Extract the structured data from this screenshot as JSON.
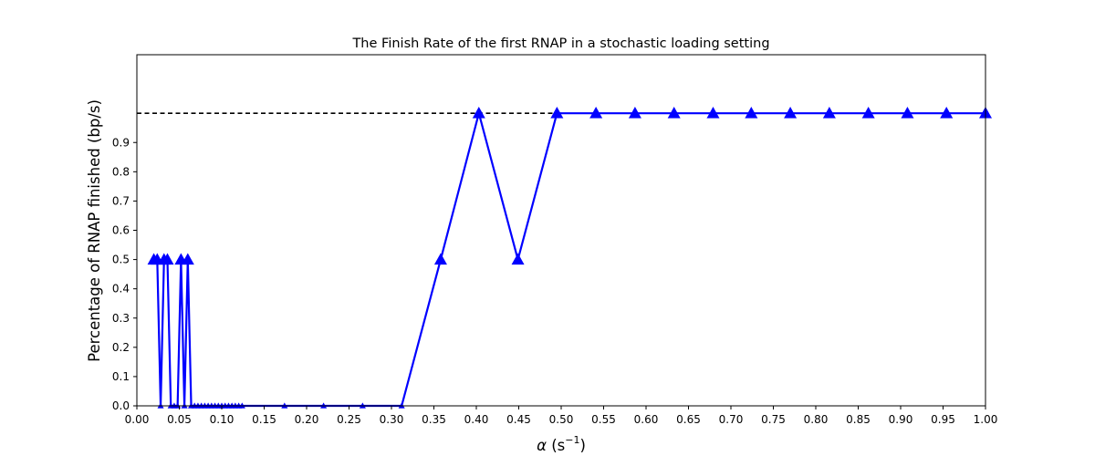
{
  "chart_data": {
    "type": "line",
    "title": "The Finish Rate of the first RNAP in a stochastic loading setting",
    "xlabel_symbol": "α",
    "xlabel_unit": "(s",
    "xlabel_exp": "−1",
    "xlabel_close": ")",
    "ylabel": "Percentage of RNAP finished (bp/s)",
    "xlim": [
      0.0,
      1.0
    ],
    "ylim": [
      0.0,
      1.2
    ],
    "x_ticks": [
      "0.00",
      "0.05",
      "0.10",
      "0.15",
      "0.20",
      "0.25",
      "0.30",
      "0.35",
      "0.40",
      "0.45",
      "0.50",
      "0.55",
      "0.60",
      "0.65",
      "0.70",
      "0.75",
      "0.80",
      "0.85",
      "0.90",
      "0.95",
      "1.00"
    ],
    "y_ticks": [
      "0.0",
      "0.1",
      "0.2",
      "0.3",
      "0.4",
      "0.5",
      "0.6",
      "0.7",
      "0.8",
      "0.9"
    ],
    "grid": false,
    "reference_line": {
      "y": 1.0,
      "x_end": 0.5,
      "style": "dashed",
      "color": "#000000"
    },
    "series": [
      {
        "color": "#0000ff",
        "marker": "triangle",
        "x": [
          0.02,
          0.024,
          0.028,
          0.032,
          0.036,
          0.04,
          0.044,
          0.048,
          0.052,
          0.056,
          0.06,
          0.064,
          0.068,
          0.072,
          0.076,
          0.08,
          0.084,
          0.088,
          0.092,
          0.096,
          0.1,
          0.104,
          0.108,
          0.112,
          0.116,
          0.12,
          0.124,
          0.174,
          0.22,
          0.266,
          0.312,
          0.358,
          0.403,
          0.449,
          0.495,
          0.541,
          0.587,
          0.633,
          0.679,
          0.724,
          0.77,
          0.816,
          0.862,
          0.908,
          0.954,
          1.0
        ],
        "y": [
          0.5,
          0.5,
          0.0,
          0.5,
          0.5,
          0.0,
          0.0,
          0.0,
          0.5,
          0.0,
          0.5,
          0.0,
          0.0,
          0.0,
          0.0,
          0.0,
          0.0,
          0.0,
          0.0,
          0.0,
          0.0,
          0.0,
          0.0,
          0.0,
          0.0,
          0.0,
          0.0,
          0.0,
          0.0,
          0.0,
          0.0,
          0.5,
          1.0,
          0.5,
          1.0,
          1.0,
          1.0,
          1.0,
          1.0,
          1.0,
          1.0,
          1.0,
          1.0,
          1.0,
          1.0,
          1.0
        ]
      }
    ]
  }
}
